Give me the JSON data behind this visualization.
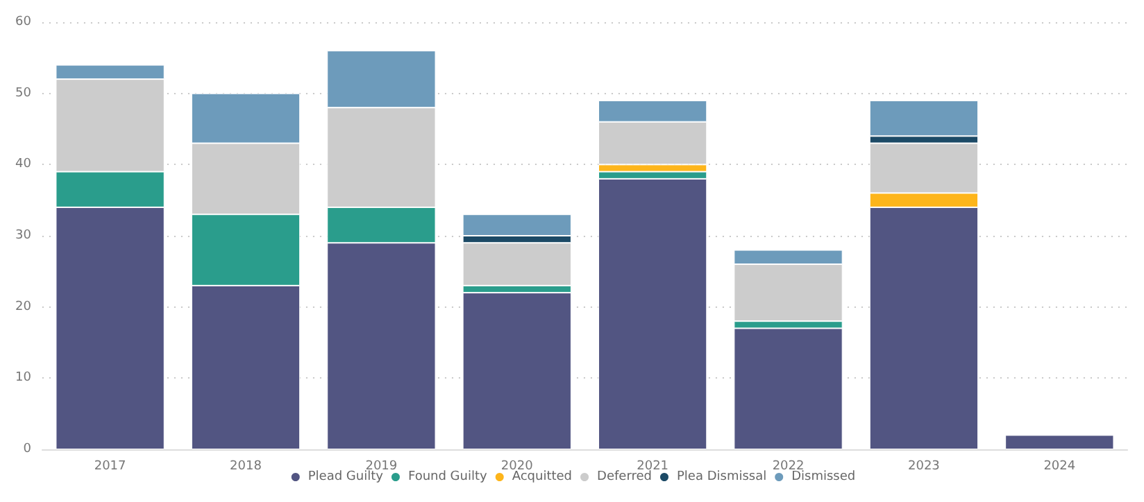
{
  "chart_data": {
    "type": "bar",
    "stacked": true,
    "categories": [
      "2017",
      "2018",
      "2019",
      "2020",
      "2021",
      "2022",
      "2023",
      "2024"
    ],
    "series": [
      {
        "name": "Plead Guilty",
        "color": "#525582",
        "values": [
          34,
          23,
          29,
          22,
          38,
          17,
          34,
          2
        ]
      },
      {
        "name": "Found Guilty",
        "color": "#2a9d8c",
        "values": [
          5,
          10,
          5,
          1,
          1,
          1,
          null,
          null
        ]
      },
      {
        "name": "Acquitted",
        "color": "#fdb51b",
        "values": [
          null,
          null,
          null,
          null,
          1,
          null,
          2,
          null
        ]
      },
      {
        "name": "Deferred",
        "color": "#cccccc",
        "values": [
          13,
          10,
          14,
          6,
          6,
          8,
          7,
          null
        ]
      },
      {
        "name": "Plea Dismissal",
        "color": "#1c4a66",
        "values": [
          null,
          null,
          null,
          1,
          null,
          null,
          1,
          null
        ]
      },
      {
        "name": "Dismissed",
        "color": "#6d9bbb",
        "values": [
          2,
          7,
          8,
          3,
          3,
          2,
          5,
          null
        ]
      }
    ],
    "ylim": [
      0,
      60
    ],
    "yticks": [
      0,
      10,
      20,
      30,
      40,
      50,
      60
    ],
    "grid": "y",
    "legend": "bottom"
  }
}
